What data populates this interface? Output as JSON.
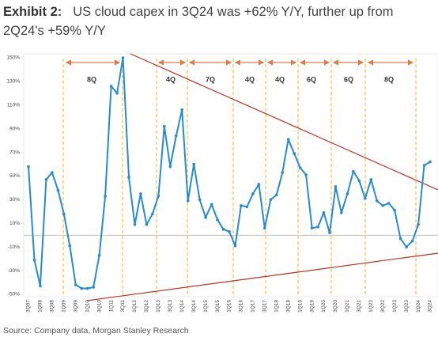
{
  "chart_data": {
    "type": "line",
    "label": "Exhibit 2:",
    "title": "US cloud capex in 3Q24 was +62% Y/Y, further up from 2Q24's +59% Y/Y",
    "source": "Source: Company data, Morgan Stanley Research",
    "annotations": [
      "8Q",
      "4Q",
      "7Q",
      "4Q",
      "4Q",
      "6Q",
      "6Q",
      "8Q"
    ],
    "categories": [
      "3Q07",
      null,
      "1Q08",
      null,
      "3Q08",
      null,
      "1Q09",
      null,
      "3Q09",
      null,
      "1Q10",
      null,
      "3Q10",
      null,
      "1Q11",
      null,
      "3Q11",
      null,
      "1Q12",
      null,
      "3Q12",
      null,
      "1Q13",
      null,
      "3Q13",
      null,
      "1Q14",
      null,
      "3Q14",
      null,
      "1Q15",
      null,
      "3Q15",
      null,
      "1Q16",
      null,
      "3Q16",
      null,
      "1Q17",
      null,
      "3Q17",
      null,
      "1Q18",
      null,
      "3Q18",
      null,
      "1Q19",
      null,
      "3Q19",
      null,
      "1Q20",
      null,
      "3Q20",
      null,
      "1Q21",
      null,
      "3Q21",
      null,
      "1Q22",
      null,
      "3Q22",
      null,
      "1Q23",
      null,
      "3Q23",
      null,
      "1Q24",
      null,
      "3Q24"
    ],
    "series": [
      {
        "name": "US cloud capex Y/Y",
        "color": "#2a8bc9",
        "values": [
          58,
          -21,
          -43,
          47,
          53,
          38,
          18,
          -9,
          -42,
          -45,
          -45,
          -44,
          -17,
          33,
          126,
          120,
          150,
          49,
          9,
          35,
          9,
          18,
          33,
          92,
          58,
          84,
          106,
          29,
          60,
          30,
          15,
          26,
          13,
          5,
          3,
          -9,
          25,
          24,
          35,
          43,
          6,
          30,
          34,
          53,
          81,
          69,
          57,
          51,
          6,
          7,
          19,
          2,
          41,
          19,
          35,
          54,
          46,
          31,
          47,
          29,
          25,
          27,
          21,
          -3,
          -10,
          -5,
          9,
          59,
          62
        ]
      }
    ],
    "ylim": [
      -50,
      150
    ],
    "yticks": [
      {
        "value": 150,
        "label": "150%"
      },
      {
        "value": 130,
        "label": "130%"
      },
      {
        "value": 110,
        "label": "110%"
      },
      {
        "value": 90,
        "label": "90%"
      },
      {
        "value": 70,
        "label": "70%"
      },
      {
        "value": 50,
        "label": "50%"
      },
      {
        "value": 30,
        "label": "30%"
      },
      {
        "value": 10,
        "label": "10%"
      },
      {
        "value": -10,
        "label": "-10%"
      },
      {
        "value": -30,
        "label": "-30%"
      },
      {
        "value": -50,
        "label": "-50%"
      }
    ],
    "grid": false
  }
}
